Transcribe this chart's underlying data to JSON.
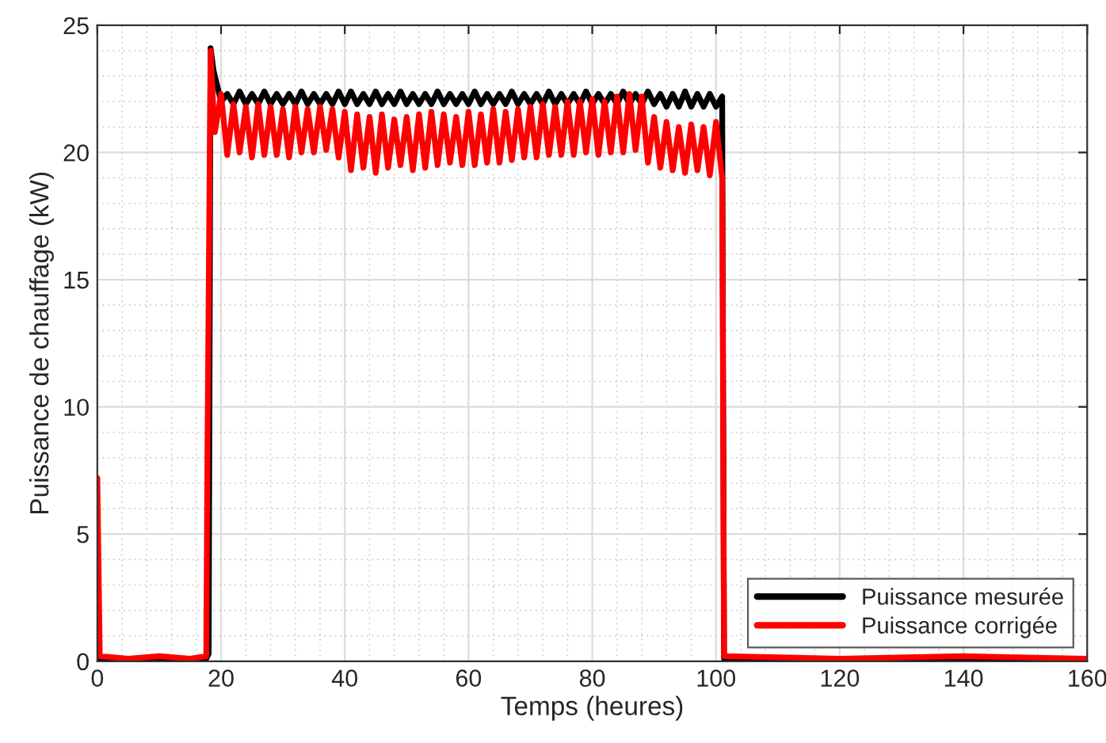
{
  "chart_data": {
    "type": "line",
    "xlabel": "Temps (heures)",
    "ylabel": "Puissance de chauffage (kW)",
    "xlim": [
      0,
      160
    ],
    "ylim": [
      0,
      25
    ],
    "xticks": [
      0,
      20,
      40,
      60,
      80,
      100,
      120,
      140,
      160
    ],
    "yticks": [
      0,
      5,
      10,
      15,
      20,
      25
    ],
    "grid": true,
    "legend": "bottom right",
    "line_style": "solid",
    "marker": "none",
    "series": [
      {
        "name": "Puissance mesurée",
        "color": "#000000",
        "x": [
          0,
          17.6,
          18.0,
          18.3,
          18.8,
          19.5,
          20,
          21,
          22,
          23,
          24,
          25,
          26,
          27,
          28,
          29,
          30,
          31,
          32,
          33,
          34,
          35,
          36,
          37,
          38,
          39,
          40,
          41,
          42,
          43,
          44,
          45,
          46,
          47,
          48,
          49,
          50,
          51,
          52,
          53,
          54,
          55,
          56,
          57,
          58,
          59,
          60,
          61,
          62,
          63,
          64,
          65,
          66,
          67,
          68,
          69,
          70,
          71,
          72,
          73,
          74,
          75,
          76,
          77,
          78,
          79,
          80,
          81,
          82,
          83,
          84,
          85,
          86,
          87,
          88,
          89,
          90,
          91,
          92,
          93,
          94,
          95,
          96,
          97,
          98,
          99,
          100,
          101,
          101.3,
          160
        ],
        "values": [
          0.1,
          0.1,
          0.3,
          24.1,
          23.2,
          22.5,
          22.0,
          22.3,
          21.9,
          22.4,
          21.9,
          22.3,
          21.9,
          22.4,
          21.9,
          22.3,
          21.9,
          22.3,
          21.9,
          22.4,
          21.9,
          22.3,
          21.9,
          22.3,
          21.9,
          22.4,
          21.9,
          22.4,
          21.9,
          22.3,
          21.9,
          22.4,
          21.9,
          22.3,
          21.9,
          22.4,
          21.9,
          22.3,
          21.9,
          22.3,
          21.9,
          22.4,
          21.9,
          22.3,
          21.9,
          22.3,
          21.9,
          22.4,
          21.9,
          22.3,
          21.9,
          22.3,
          21.9,
          22.4,
          21.9,
          22.3,
          21.9,
          22.3,
          21.9,
          22.4,
          21.9,
          22.3,
          21.9,
          22.3,
          21.9,
          22.4,
          21.9,
          22.3,
          21.9,
          22.3,
          21.9,
          22.4,
          21.9,
          22.3,
          21.9,
          22.4,
          21.9,
          22.3,
          21.8,
          22.3,
          21.8,
          22.4,
          21.8,
          22.3,
          21.8,
          22.3,
          21.8,
          22.2,
          0.1,
          0.1
        ]
      },
      {
        "name": "Puissance corrigée",
        "color": "#ff0000",
        "x": [
          0,
          0.4,
          5,
          10,
          15,
          17.6,
          17.8,
          18.3,
          18.8,
          19,
          20,
          21,
          22,
          23,
          24,
          25,
          26,
          27,
          28,
          29,
          30,
          31,
          32,
          33,
          34,
          35,
          36,
          37,
          38,
          39,
          40,
          41,
          42,
          43,
          44,
          45,
          46,
          47,
          48,
          49,
          50,
          51,
          52,
          53,
          54,
          55,
          56,
          57,
          58,
          59,
          60,
          61,
          62,
          63,
          64,
          65,
          66,
          67,
          68,
          69,
          70,
          71,
          72,
          73,
          74,
          75,
          76,
          77,
          78,
          79,
          80,
          81,
          82,
          83,
          84,
          85,
          86,
          87,
          88,
          89,
          90,
          91,
          92,
          93,
          94,
          95,
          96,
          97,
          98,
          99,
          100,
          101,
          101.3,
          120,
          140,
          160
        ],
        "values": [
          7.2,
          0.2,
          0.1,
          0.2,
          0.1,
          0.2,
          8.3,
          24.0,
          21.5,
          20.8,
          22.3,
          19.9,
          21.9,
          20.0,
          21.8,
          19.8,
          21.9,
          19.9,
          21.8,
          19.9,
          21.7,
          19.8,
          21.8,
          20.0,
          21.7,
          20.0,
          21.8,
          20.1,
          21.7,
          19.8,
          21.6,
          19.3,
          21.5,
          19.4,
          21.4,
          19.2,
          21.5,
          19.4,
          21.3,
          19.5,
          21.4,
          19.3,
          21.5,
          19.4,
          21.6,
          19.5,
          21.5,
          19.6,
          21.4,
          19.5,
          21.6,
          19.5,
          21.5,
          19.6,
          21.7,
          19.6,
          21.6,
          19.7,
          21.7,
          19.8,
          21.8,
          19.8,
          21.9,
          19.9,
          21.8,
          19.9,
          22.0,
          19.9,
          22.0,
          20.0,
          22.1,
          19.9,
          22.0,
          20.0,
          22.2,
          20.0,
          22.3,
          20.1,
          22.2,
          19.6,
          21.4,
          19.4,
          21.2,
          19.3,
          21.0,
          19.2,
          21.1,
          19.3,
          21.0,
          19.1,
          21.2,
          19.0,
          0.2,
          0.1,
          0.2,
          0.1
        ]
      }
    ]
  }
}
